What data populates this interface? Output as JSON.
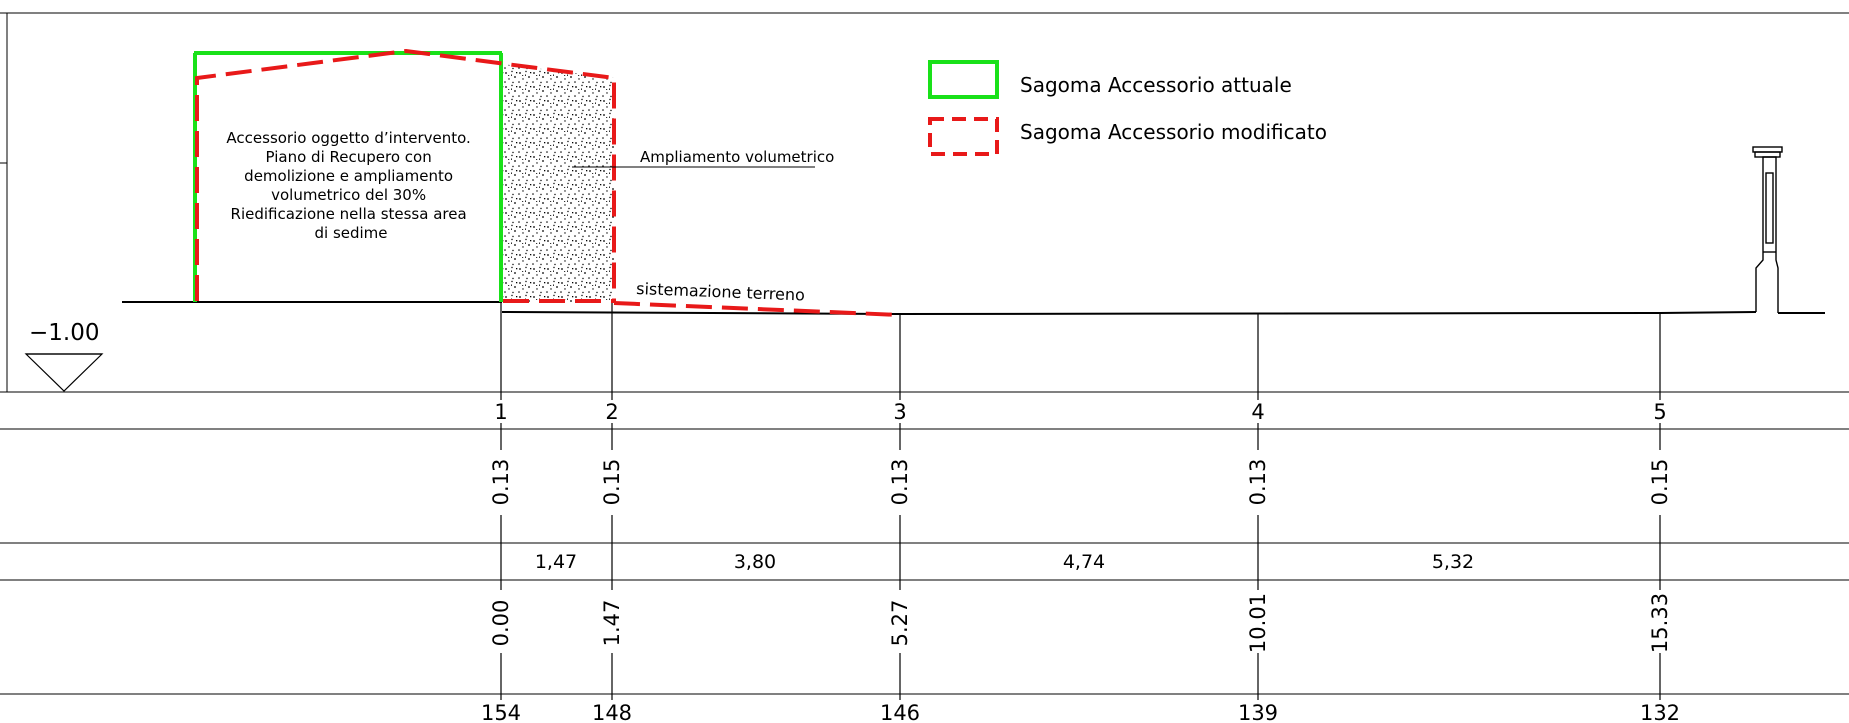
{
  "datum": {
    "elevation_label": "−1.00"
  },
  "building": {
    "note_lines": [
      "Accessorio oggetto d’intervento.",
      "Piano di Recupero con",
      "demolizione e ampliamento",
      "volumetrico del 30%",
      "Riedificazione nella stessa area",
      "di sedime"
    ]
  },
  "annotations": {
    "extension": "Ampliamento volumetrico",
    "terrain": "sistemazione terreno"
  },
  "legend": {
    "current_label": "Sagoma Accessorio attuale",
    "modified_label": "Sagoma Accessorio modificato",
    "current_color": "#19e119",
    "modified_color": "#e81919"
  },
  "sections": [
    {
      "station": "1",
      "height": "0.13",
      "progressive": "0.00",
      "elevation": "154"
    },
    {
      "station": "2",
      "height": "0.15",
      "progressive": "1.47",
      "elevation": "148"
    },
    {
      "station": "3",
      "height": "0.13",
      "progressive": "5.27",
      "elevation": "146"
    },
    {
      "station": "4",
      "height": "0.13",
      "progressive": "10.01",
      "elevation": "139"
    },
    {
      "station": "5",
      "height": "0.15",
      "progressive": "15.33",
      "elevation": "132"
    }
  ],
  "partial_distances": [
    "1,47",
    "3,80",
    "4,74",
    "5,32"
  ]
}
